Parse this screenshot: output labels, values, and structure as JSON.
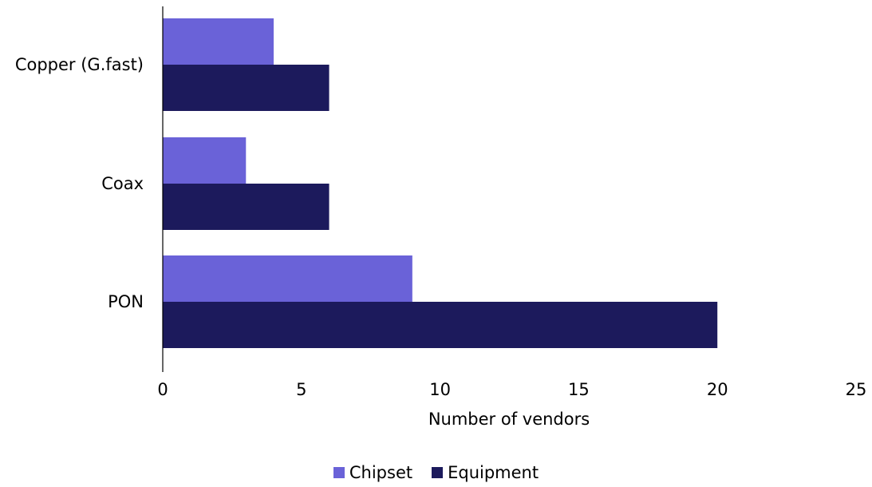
{
  "chart_data": {
    "type": "bar",
    "orientation": "horizontal",
    "categories": [
      "Copper (G.fast)",
      "Coax",
      "PON"
    ],
    "series": [
      {
        "name": "Chipset",
        "values": [
          4,
          3,
          9
        ],
        "color": "#6a62d8"
      },
      {
        "name": "Equipment",
        "values": [
          6,
          6,
          20
        ],
        "color": "#1c1a5c"
      }
    ],
    "xlabel": "Number of vendors",
    "ylabel": "",
    "xlim": [
      0,
      25
    ],
    "xticks": [
      "0",
      "5",
      "10",
      "15",
      "20",
      "25"
    ],
    "grid": false,
    "legend_position": "bottom"
  }
}
